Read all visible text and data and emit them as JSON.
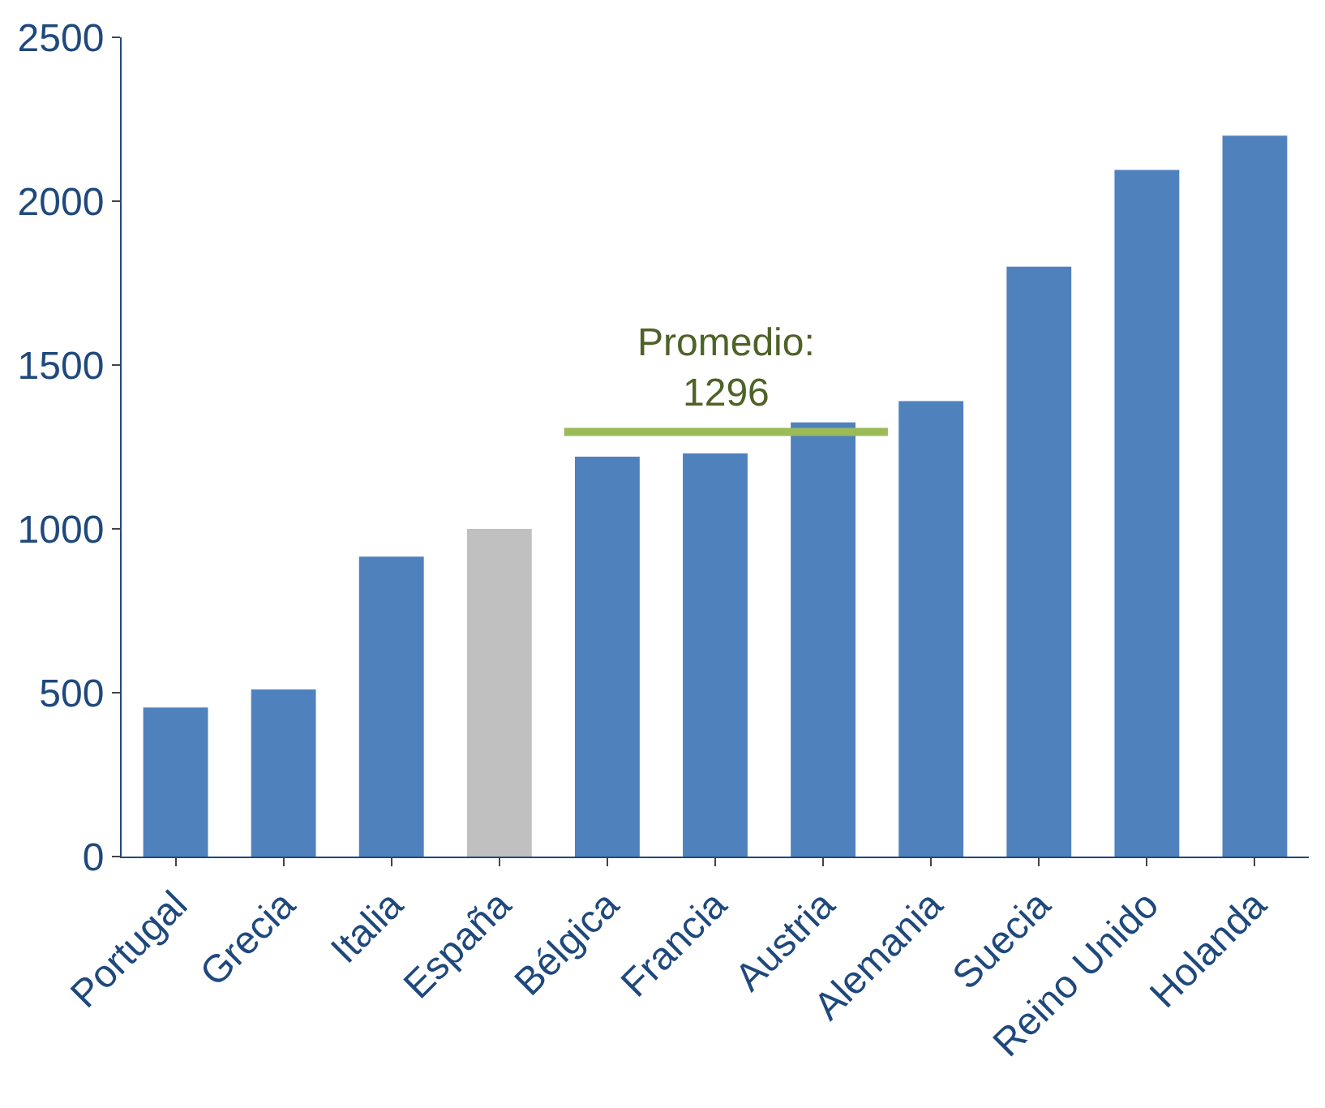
{
  "chart_data": {
    "type": "bar",
    "categories": [
      "Portugal",
      "Grecia",
      "Italia",
      "España",
      "Bélgica",
      "Francia",
      "Austria",
      "Alemania",
      "Suecia",
      "Reino Unido",
      "Holanda"
    ],
    "values": [
      455,
      510,
      915,
      1000,
      1220,
      1230,
      1325,
      1390,
      1800,
      2095,
      2200
    ],
    "colors": [
      "#4f81bd",
      "#4f81bd",
      "#4f81bd",
      "#c0c0c0",
      "#4f81bd",
      "#4f81bd",
      "#4f81bd",
      "#4f81bd",
      "#4f81bd",
      "#4f81bd",
      "#4f81bd"
    ],
    "ylim": [
      0,
      2500
    ],
    "yticks": [
      0,
      500,
      1000,
      1500,
      2000,
      2500
    ],
    "ref_lines": [
      {
        "axis": "y",
        "value": 1296,
        "label": "Promedio:\n1296",
        "color": "#9bbb59"
      }
    ]
  }
}
